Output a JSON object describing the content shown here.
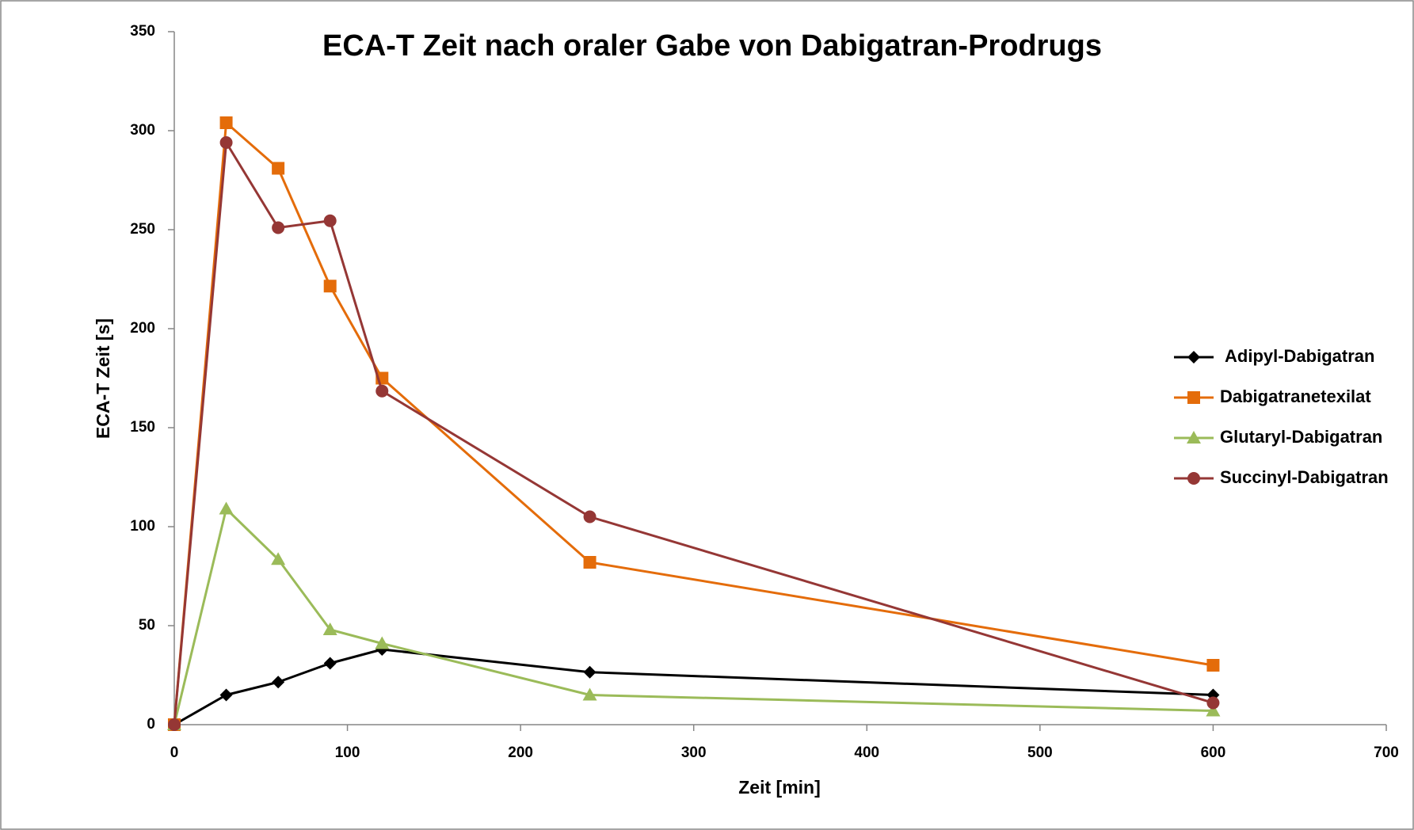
{
  "chart_data": {
    "type": "line",
    "title": "ECA-T Zeit nach oraler Gabe von Dabigatran-Prodrugs",
    "xlabel": "Zeit [min]",
    "ylabel": "ECA-T Zeit [s]",
    "x": [
      0,
      30,
      60,
      90,
      120,
      240,
      600
    ],
    "series": [
      {
        "name": "Adipyl-Dabigatran",
        "color": "#000000",
        "marker": "diamond",
        "values": [
          0,
          15,
          21.5,
          31,
          38,
          26.5,
          15
        ]
      },
      {
        "name": "Dabigatranetexilat",
        "color": "#e46c0a",
        "marker": "square",
        "values": [
          0,
          304,
          281,
          221.5,
          175,
          82,
          30
        ]
      },
      {
        "name": "Glutaryl-Dabigatran",
        "color": "#9bbb59",
        "marker": "triangle",
        "values": [
          0,
          109,
          83.5,
          48,
          41,
          15,
          7
        ]
      },
      {
        "name": "Succinyl-Dabigatran",
        "color": "#953735",
        "marker": "circle",
        "values": [
          0,
          294,
          251,
          254.5,
          168.5,
          105,
          11
        ]
      }
    ],
    "xlim": [
      0,
      700
    ],
    "xticks": [
      0,
      100,
      200,
      300,
      400,
      500,
      600,
      700
    ],
    "ylim": [
      0,
      350
    ],
    "yticks": [
      0,
      50,
      100,
      150,
      200,
      250,
      300,
      350
    ],
    "grid": false,
    "legend": "right"
  }
}
